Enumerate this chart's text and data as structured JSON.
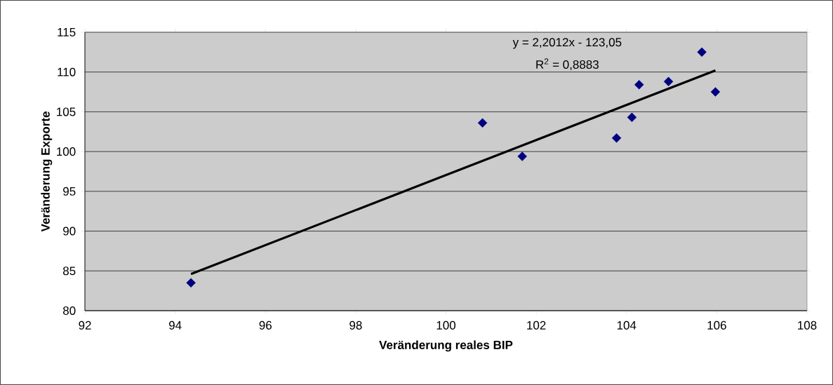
{
  "chart_data": {
    "type": "scatter",
    "xlabel": "Veränderung reales BIP",
    "ylabel": "Veränderung Exporte",
    "xlim": [
      92,
      108
    ],
    "xticks": [
      92,
      94,
      96,
      98,
      100,
      102,
      104,
      106,
      108
    ],
    "ylim": [
      80,
      115
    ],
    "yticks": [
      80,
      85,
      90,
      95,
      100,
      105,
      110,
      115
    ],
    "grid": "y",
    "series": [
      {
        "color": "#000080",
        "marker": "diamond",
        "x": [
          94.35,
          100.81,
          101.69,
          103.78,
          104.12,
          104.28,
          104.93,
          105.67,
          105.97
        ],
        "values": [
          83.5,
          103.6,
          99.4,
          101.7,
          104.3,
          108.4,
          108.8,
          112.5,
          107.5
        ]
      },
      {
        "type": "line",
        "color": "#000000",
        "line_style": "solid",
        "x": [
          94.35,
          105.97
        ],
        "values": [
          84.6,
          110.2
        ]
      }
    ],
    "annotations": [
      "y = 2,2012x - 123,05",
      "R$^{2}$ = 0,8883"
    ]
  }
}
